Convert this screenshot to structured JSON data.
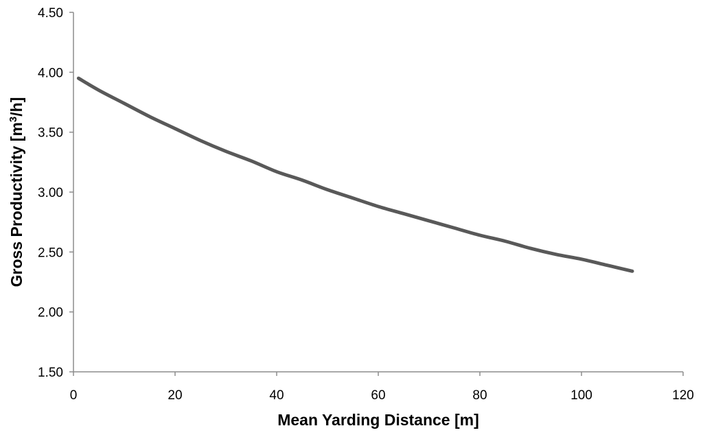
{
  "chart_data": {
    "type": "line",
    "title": "",
    "xlabel": "Mean Yarding Distance [m]",
    "ylabel_parts": [
      "Gross Productivity [m",
      "3",
      "/h]"
    ],
    "xlim": [
      0,
      120
    ],
    "ylim": [
      1.5,
      4.5
    ],
    "x_ticks": [
      0,
      20,
      40,
      60,
      80,
      100,
      120
    ],
    "x_tick_labels": [
      "0",
      "20",
      "40",
      "60",
      "80",
      "100",
      "120"
    ],
    "y_ticks": [
      1.5,
      2.0,
      2.5,
      3.0,
      3.5,
      4.0,
      4.5
    ],
    "y_tick_labels": [
      "1.50",
      "2.00",
      "2.50",
      "3.00",
      "3.50",
      "4.00",
      "4.50"
    ],
    "grid": false,
    "legend": "none",
    "series": [
      {
        "color": "#595959",
        "x": [
          1,
          5,
          10,
          15,
          20,
          25,
          30,
          35,
          40,
          45,
          50,
          55,
          60,
          65,
          70,
          75,
          80,
          85,
          90,
          95,
          100,
          105,
          110
        ],
        "y": [
          3.95,
          3.85,
          3.74,
          3.63,
          3.53,
          3.43,
          3.34,
          3.26,
          3.17,
          3.1,
          3.02,
          2.95,
          2.88,
          2.82,
          2.76,
          2.7,
          2.64,
          2.59,
          2.53,
          2.48,
          2.44,
          2.39,
          2.34
        ]
      }
    ]
  }
}
